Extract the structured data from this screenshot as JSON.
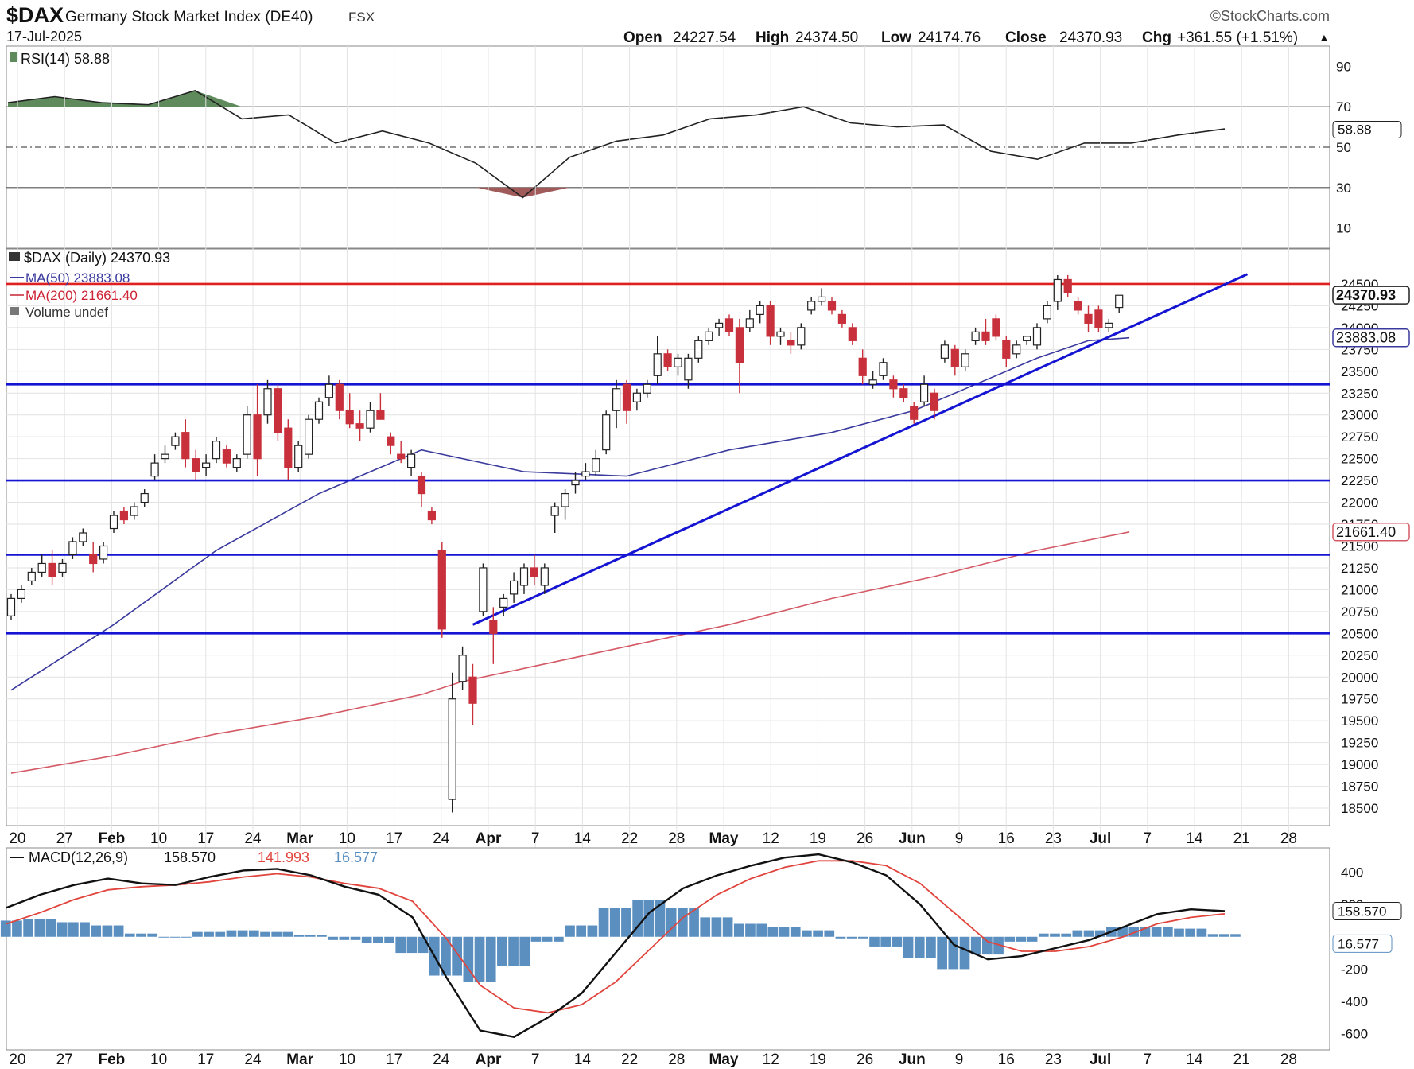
{
  "header": {
    "symbol": "$DAX",
    "name": "Germany Stock Market Index (DE40)",
    "exchange": "FSX",
    "date": "17-Jul-2025",
    "copyright": "©StockCharts.com",
    "open_label": "Open",
    "open": "24227.54",
    "high_label": "High",
    "high": "24374.50",
    "low_label": "Low",
    "low": "24174.76",
    "close_label": "Close",
    "close": "24370.93",
    "chg_label": "Chg",
    "chg": "+361.55 (+1.51%)",
    "up_arrow": "▲"
  },
  "colors": {
    "up": "#ffffff",
    "down": "#c8303c",
    "ma50": "#3a3a9e",
    "ma200": "#d45a66",
    "hline": "#1414d2",
    "resist": "#e02020",
    "macd_hist": "#5b8fc0"
  },
  "chart_data": [
    {
      "type": "line",
      "panel": "RSI",
      "title": "RSI(14) 58.88",
      "ylim": [
        0,
        100
      ],
      "yticks": [
        10,
        30,
        50,
        70,
        90
      ],
      "reference_lines": [
        30,
        50,
        70
      ],
      "last_value": "58.88",
      "series": [
        {
          "name": "RSI(14)",
          "x": [
            "Jan 20",
            "Jan 27",
            "Feb 3",
            "Feb 10",
            "Feb 17",
            "Feb 24",
            "Mar 3",
            "Mar 10",
            "Mar 17",
            "Mar 24",
            "Apr 1",
            "Apr 7",
            "Apr 14",
            "Apr 22",
            "Apr 28",
            "May 5",
            "May 12",
            "May 19",
            "May 26",
            "Jun 2",
            "Jun 9",
            "Jun 16",
            "Jun 23",
            "Jul 1",
            "Jul 7",
            "Jul 14",
            "Jul 17"
          ],
          "values": [
            72,
            75,
            72,
            71,
            78,
            64,
            66,
            52,
            58,
            52,
            42,
            25,
            45,
            53,
            56,
            64,
            66,
            70,
            62,
            60,
            61,
            48,
            44,
            52,
            52,
            56,
            59
          ]
        }
      ]
    },
    {
      "type": "candlestick",
      "panel": "price",
      "title": "$DAX (Daily) 24370.93",
      "ylim": [
        18300,
        24900
      ],
      "yticks": [
        18500,
        18750,
        19000,
        19250,
        19500,
        19750,
        20000,
        20250,
        20500,
        20750,
        21000,
        21250,
        21500,
        21750,
        22000,
        22250,
        22500,
        22750,
        23000,
        23250,
        23500,
        23750,
        24000,
        24250,
        24500
      ],
      "x_labels": [
        "20",
        "27",
        "Feb",
        "10",
        "17",
        "24",
        "Mar",
        "10",
        "17",
        "24",
        "Apr",
        "7",
        "14",
        "22",
        "28",
        "May",
        "12",
        "19",
        "26",
        "Jun",
        "9",
        "16",
        "23",
        "Jul",
        "7",
        "14",
        "21",
        "28"
      ],
      "legend": [
        "$DAX (Daily) 24370.93",
        "MA(50) 23883.08",
        "MA(200) 21661.40",
        "Volume undef"
      ],
      "last_price": "24370.93",
      "ma50_last": "23883.08",
      "ma200_last": "21661.40",
      "ohlc": [
        [
          20700,
          20950,
          20650,
          20900
        ],
        [
          20900,
          21050,
          20850,
          21000
        ],
        [
          21100,
          21250,
          21050,
          21200
        ],
        [
          21200,
          21400,
          21150,
          21300
        ],
        [
          21300,
          21450,
          21050,
          21150
        ],
        [
          21200,
          21350,
          21150,
          21300
        ],
        [
          21400,
          21600,
          21350,
          21550
        ],
        [
          21550,
          21700,
          21500,
          21650
        ],
        [
          21400,
          21550,
          21200,
          21300
        ],
        [
          21350,
          21550,
          21300,
          21500
        ],
        [
          21700,
          21900,
          21650,
          21850
        ],
        [
          21900,
          21950,
          21750,
          21800
        ],
        [
          21850,
          22000,
          21800,
          21950
        ],
        [
          22000,
          22150,
          21950,
          22100
        ],
        [
          22300,
          22550,
          22250,
          22450
        ],
        [
          22500,
          22650,
          22450,
          22550
        ],
        [
          22650,
          22800,
          22600,
          22750
        ],
        [
          22800,
          22950,
          22400,
          22500
        ],
        [
          22500,
          22600,
          22250,
          22350
        ],
        [
          22400,
          22550,
          22300,
          22450
        ],
        [
          22500,
          22750,
          22450,
          22700
        ],
        [
          22600,
          22650,
          22400,
          22450
        ],
        [
          22400,
          22550,
          22350,
          22500
        ],
        [
          22550,
          23100,
          22500,
          23000
        ],
        [
          23000,
          23350,
          22300,
          22500
        ],
        [
          23000,
          23400,
          22900,
          23300
        ],
        [
          23300,
          23350,
          22700,
          22800
        ],
        [
          22850,
          22950,
          22250,
          22400
        ],
        [
          22400,
          22700,
          22350,
          22650
        ],
        [
          22550,
          23000,
          22500,
          22950
        ],
        [
          22950,
          23200,
          22900,
          23150
        ],
        [
          23200,
          23450,
          23100,
          23350
        ],
        [
          23350,
          23400,
          22950,
          23050
        ],
        [
          23050,
          23250,
          22850,
          22900
        ],
        [
          22900,
          23050,
          22700,
          22850
        ],
        [
          22850,
          23150,
          22800,
          23050
        ],
        [
          23050,
          23250,
          22950,
          22950
        ],
        [
          22750,
          22800,
          22550,
          22650
        ],
        [
          22550,
          22700,
          22450,
          22500
        ],
        [
          22400,
          22600,
          22300,
          22550
        ],
        [
          22300,
          22350,
          21950,
          22100
        ],
        [
          21900,
          21950,
          21750,
          21800
        ],
        [
          21450,
          21550,
          20450,
          20550
        ],
        [
          18600,
          20050,
          18450,
          19750
        ],
        [
          19950,
          20350,
          19850,
          20250
        ],
        [
          20000,
          20150,
          19450,
          19700
        ],
        [
          20750,
          21300,
          20700,
          21250
        ],
        [
          20650,
          20800,
          20150,
          20500
        ],
        [
          20800,
          20950,
          20700,
          20900
        ],
        [
          20950,
          21200,
          20850,
          21100
        ],
        [
          21050,
          21300,
          20950,
          21250
        ],
        [
          21250,
          21400,
          21050,
          21150
        ],
        [
          21050,
          21300,
          20950,
          21250
        ],
        [
          21850,
          22000,
          21650,
          21950
        ],
        [
          21950,
          22150,
          21800,
          22100
        ],
        [
          22200,
          22350,
          22100,
          22250
        ],
        [
          22300,
          22450,
          22250,
          22350
        ],
        [
          22350,
          22600,
          22300,
          22500
        ],
        [
          22600,
          23050,
          22550,
          23000
        ],
        [
          23050,
          23400,
          22850,
          23300
        ],
        [
          23350,
          23400,
          22900,
          23050
        ],
        [
          23150,
          23300,
          23050,
          23250
        ],
        [
          23250,
          23400,
          23200,
          23350
        ],
        [
          23450,
          23900,
          23350,
          23700
        ],
        [
          23700,
          23750,
          23500,
          23550
        ],
        [
          23550,
          23700,
          23450,
          23650
        ],
        [
          23400,
          23700,
          23300,
          23650
        ],
        [
          23650,
          23900,
          23600,
          23850
        ],
        [
          23850,
          24000,
          23800,
          23950
        ],
        [
          24000,
          24100,
          23900,
          24050
        ],
        [
          24100,
          24150,
          23900,
          23950
        ],
        [
          24000,
          24100,
          23250,
          23600
        ],
        [
          24000,
          24200,
          23950,
          24100
        ],
        [
          24150,
          24300,
          24050,
          24250
        ],
        [
          24250,
          24300,
          23800,
          23900
        ],
        [
          23900,
          24000,
          23800,
          23950
        ],
        [
          23850,
          23950,
          23700,
          23800
        ],
        [
          23800,
          24050,
          23750,
          24000
        ],
        [
          24200,
          24350,
          24150,
          24300
        ],
        [
          24300,
          24450,
          24250,
          24350
        ],
        [
          24300,
          24350,
          24150,
          24200
        ],
        [
          24150,
          24200,
          24000,
          24050
        ],
        [
          24000,
          24050,
          23800,
          23850
        ],
        [
          23650,
          23750,
          23350,
          23450
        ],
        [
          23350,
          23500,
          23300,
          23400
        ],
        [
          23450,
          23650,
          23400,
          23600
        ],
        [
          23400,
          23450,
          23200,
          23300
        ],
        [
          23300,
          23350,
          23150,
          23200
        ],
        [
          23100,
          23150,
          22900,
          22950
        ],
        [
          23150,
          23450,
          23100,
          23350
        ],
        [
          23250,
          23300,
          22950,
          23050
        ],
        [
          23650,
          23850,
          23600,
          23800
        ],
        [
          23750,
          23800,
          23450,
          23550
        ],
        [
          23550,
          23750,
          23500,
          23700
        ],
        [
          23850,
          24000,
          23800,
          23950
        ],
        [
          23950,
          24100,
          23800,
          23850
        ],
        [
          24100,
          24150,
          23850,
          23900
        ],
        [
          23850,
          23900,
          23550,
          23650
        ],
        [
          23700,
          23850,
          23650,
          23800
        ],
        [
          23850,
          23900,
          23800,
          23900
        ],
        [
          23800,
          24050,
          23750,
          24000
        ],
        [
          24100,
          24300,
          24050,
          24250
        ],
        [
          24300,
          24600,
          24200,
          24550
        ],
        [
          24550,
          24600,
          24350,
          24400
        ],
        [
          24300,
          24350,
          24150,
          24200
        ],
        [
          24150,
          24250,
          23950,
          24050
        ],
        [
          24200,
          24250,
          23950,
          24000
        ],
        [
          24000,
          24100,
          23950,
          24050
        ],
        [
          24230,
          24370,
          24170,
          24370
        ]
      ],
      "ma50": [
        [
          0,
          19850
        ],
        [
          10,
          20600
        ],
        [
          20,
          21450
        ],
        [
          30,
          22100
        ],
        [
          40,
          22600
        ],
        [
          44,
          22500
        ],
        [
          50,
          22350
        ],
        [
          60,
          22300
        ],
        [
          70,
          22600
        ],
        [
          80,
          22800
        ],
        [
          88,
          23050
        ],
        [
          95,
          23400
        ],
        [
          100,
          23650
        ],
        [
          105,
          23850
        ],
        [
          109,
          23883
        ]
      ],
      "ma200": [
        [
          0,
          18900
        ],
        [
          10,
          19100
        ],
        [
          20,
          19350
        ],
        [
          30,
          19550
        ],
        [
          40,
          19800
        ],
        [
          44,
          19950
        ],
        [
          50,
          20100
        ],
        [
          60,
          20350
        ],
        [
          70,
          20600
        ],
        [
          80,
          20900
        ],
        [
          90,
          21150
        ],
        [
          100,
          21450
        ],
        [
          109,
          21661
        ]
      ],
      "horizontal_lines": [
        20500,
        21400,
        22250,
        23350,
        24500
      ],
      "trendline": [
        [
          45,
          20600
        ],
        [
          109,
          24000
        ]
      ]
    },
    {
      "type": "line",
      "panel": "MACD",
      "title": "MACD(12,26,9)",
      "macd_value": "158.570",
      "signal_value": "141.993",
      "hist_value": "16.577",
      "ylim": [
        -700,
        550
      ],
      "yticks": [
        -600,
        -400,
        -200,
        200,
        400
      ],
      "series": [
        {
          "name": "MACD",
          "values": [
            180,
            260,
            320,
            360,
            330,
            320,
            370,
            410,
            420,
            380,
            310,
            260,
            120,
            -250,
            -580,
            -620,
            -500,
            -350,
            -100,
            150,
            300,
            380,
            440,
            490,
            510,
            460,
            380,
            200,
            -50,
            -140,
            -120,
            -70,
            -20,
            60,
            140,
            170,
            159
          ]
        },
        {
          "name": "Signal",
          "values": [
            80,
            150,
            230,
            290,
            310,
            320,
            340,
            370,
            390,
            370,
            330,
            300,
            220,
            -10,
            -300,
            -440,
            -470,
            -420,
            -280,
            -80,
            120,
            260,
            360,
            430,
            470,
            470,
            440,
            330,
            150,
            -30,
            -90,
            -90,
            -60,
            0,
            80,
            120,
            142
          ]
        }
      ]
    }
  ]
}
